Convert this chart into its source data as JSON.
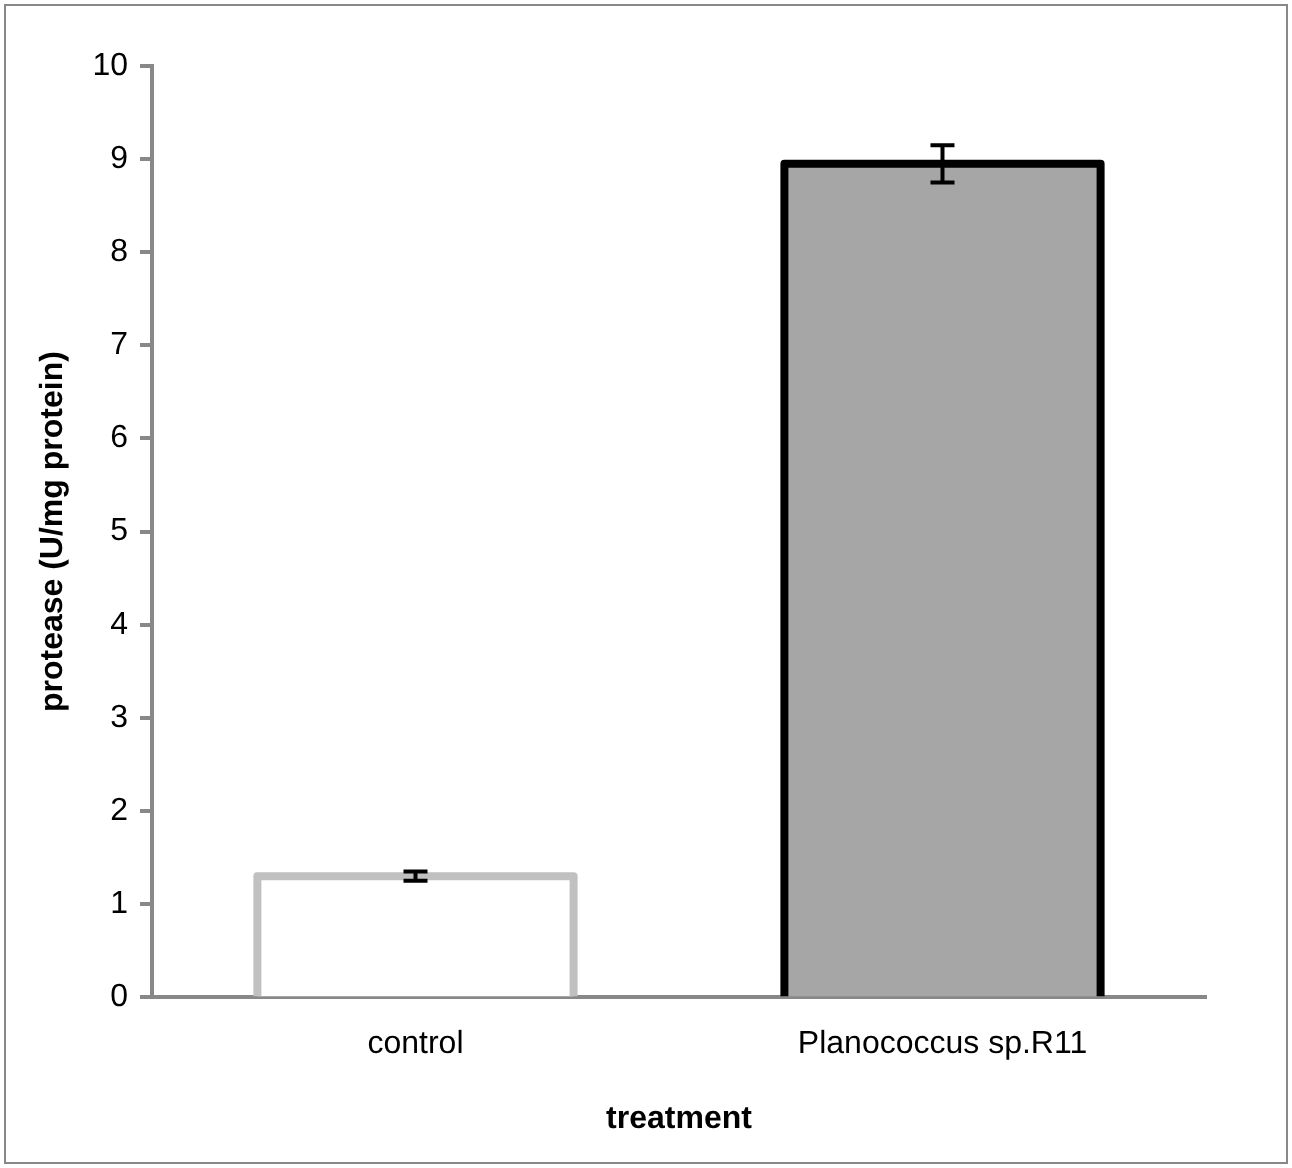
{
  "chart_data": {
    "type": "bar",
    "xlabel": "treatment",
    "ylabel": "protease (U/mg protein)",
    "categories": [
      "control",
      "Planococcus sp.R11"
    ],
    "values": [
      1.3,
      8.95
    ],
    "errors": [
      0.05,
      0.2
    ],
    "colors": [
      "#ffffff",
      "#a6a6a6"
    ],
    "ylim": [
      0,
      10
    ],
    "yticks": [
      0,
      1,
      2,
      3,
      4,
      5,
      6,
      7,
      8,
      9,
      10
    ],
    "grid": false,
    "legend": false
  }
}
